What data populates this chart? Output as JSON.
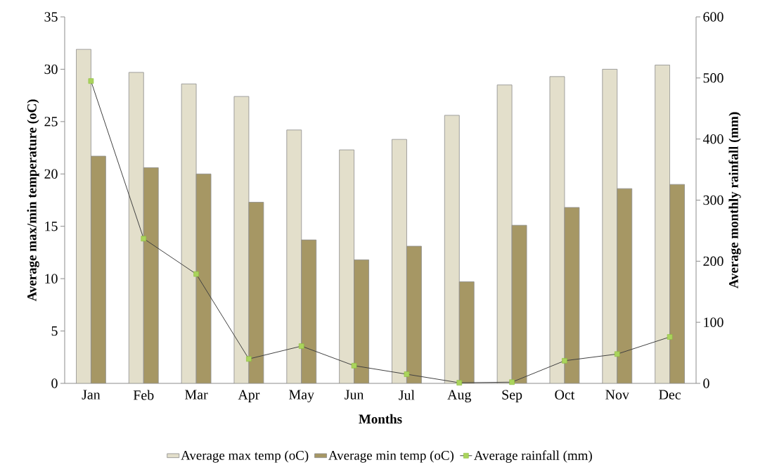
{
  "chart_data": {
    "type": "bar",
    "xlabel": "Months",
    "ylabel": "Average max/min temperature (oC)",
    "y2label": "Average monthly rainfall (mm)",
    "categories": [
      "Jan",
      "Feb",
      "Mar",
      "Apr",
      "May",
      "Jun",
      "Jul",
      "Aug",
      "Sep",
      "Oct",
      "Nov",
      "Dec"
    ],
    "series": [
      {
        "name": "Average max temp  (oC)",
        "type": "bar",
        "color": "#e3dfcb",
        "values": [
          31.9,
          29.7,
          28.6,
          27.4,
          24.2,
          22.3,
          23.3,
          25.6,
          28.5,
          29.3,
          30.0,
          30.4
        ]
      },
      {
        "name": "Average min temp (oC)",
        "type": "bar",
        "color": "#a69764",
        "values": [
          21.7,
          20.6,
          20.0,
          17.3,
          13.7,
          11.8,
          13.1,
          9.7,
          15.1,
          16.8,
          18.6,
          19.0
        ]
      },
      {
        "name": "Average rainfall (mm)",
        "type": "line",
        "axis": "y2",
        "color": "#404040",
        "marker": "square",
        "values": [
          495,
          237,
          179,
          40,
          61,
          29,
          15,
          1,
          2,
          37,
          48,
          76
        ]
      }
    ],
    "ylim": [
      0,
      35
    ],
    "yticks": [
      0,
      5,
      10,
      15,
      20,
      25,
      30,
      35
    ],
    "y2lim": [
      0,
      600
    ],
    "y2ticks": [
      0,
      100,
      200,
      300,
      400,
      500,
      600
    ],
    "grid": false,
    "legend": "bottom"
  }
}
